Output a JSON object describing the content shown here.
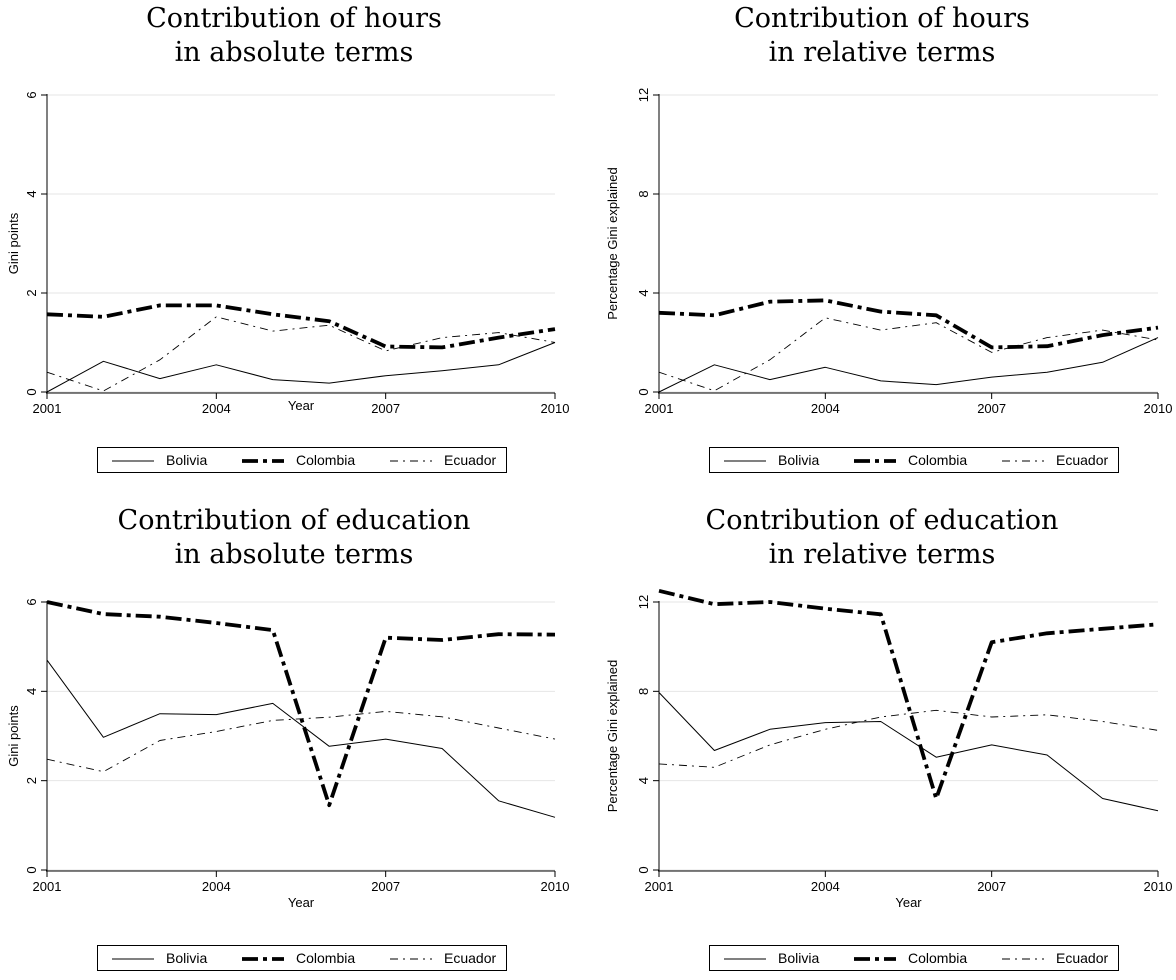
{
  "chart_data": [
    {
      "type": "line",
      "title": [
        "Contribution of hours",
        "in absolute terms"
      ],
      "xlabel": "Year",
      "ylabel": "Gini points",
      "x": [
        2001,
        2002,
        2003,
        2004,
        2005,
        2006,
        2007,
        2008,
        2009,
        2010
      ],
      "xticks": [
        "2001",
        "2004",
        "2007",
        "2010"
      ],
      "yticks": [
        "0",
        "2",
        "4",
        "6"
      ],
      "ylim": [
        0,
        6
      ],
      "grid": true,
      "legend": "bottom",
      "series": [
        {
          "name": "Bolivia",
          "values": [
            0.0,
            0.62,
            0.27,
            0.55,
            0.25,
            0.18,
            0.33,
            0.43,
            0.55,
            1.0
          ]
        },
        {
          "name": "Colombia",
          "values": [
            1.57,
            1.52,
            1.75,
            1.75,
            1.57,
            1.43,
            0.92,
            0.9,
            1.1,
            1.27
          ]
        },
        {
          "name": "Ecuador",
          "values": [
            0.4,
            0.02,
            0.65,
            1.52,
            1.23,
            1.35,
            0.83,
            1.1,
            1.2,
            1.0
          ]
        }
      ]
    },
    {
      "type": "line",
      "title": [
        "Contribution of hours",
        "in relative terms"
      ],
      "xlabel": "",
      "ylabel": "Percentage Gini explained",
      "x": [
        2001,
        2002,
        2003,
        2004,
        2005,
        2006,
        2007,
        2008,
        2009,
        2010
      ],
      "xticks": [
        "2001",
        "2004",
        "2007",
        "2010"
      ],
      "yticks": [
        "0",
        "4",
        "8",
        "12"
      ],
      "ylim": [
        0,
        12
      ],
      "grid": true,
      "legend": "bottom",
      "series": [
        {
          "name": "Bolivia",
          "values": [
            0.0,
            1.1,
            0.5,
            1.0,
            0.45,
            0.3,
            0.6,
            0.8,
            1.2,
            2.2
          ]
        },
        {
          "name": "Colombia",
          "values": [
            3.2,
            3.1,
            3.65,
            3.7,
            3.25,
            3.1,
            1.8,
            1.85,
            2.3,
            2.6
          ]
        },
        {
          "name": "Ecuador",
          "values": [
            0.8,
            0.05,
            1.3,
            3.0,
            2.5,
            2.8,
            1.6,
            2.2,
            2.5,
            2.1
          ]
        }
      ]
    },
    {
      "type": "line",
      "title": [
        "Contribution of education",
        "in absolute terms"
      ],
      "xlabel": "Year",
      "ylabel": "Gini points",
      "x": [
        2001,
        2002,
        2003,
        2004,
        2005,
        2006,
        2007,
        2008,
        2009,
        2010
      ],
      "xticks": [
        "2001",
        "2004",
        "2007",
        "2010"
      ],
      "yticks": [
        "0",
        "2",
        "4",
        "6"
      ],
      "ylim": [
        0,
        6
      ],
      "grid": true,
      "legend": "bottom",
      "series": [
        {
          "name": "Bolivia",
          "values": [
            4.7,
            2.97,
            3.5,
            3.48,
            3.73,
            2.77,
            2.93,
            2.72,
            1.55,
            1.18
          ]
        },
        {
          "name": "Colombia",
          "values": [
            6.0,
            5.73,
            5.67,
            5.53,
            5.37,
            1.45,
            5.2,
            5.15,
            5.28,
            5.27
          ]
        },
        {
          "name": "Ecuador",
          "values": [
            2.48,
            2.2,
            2.9,
            3.1,
            3.35,
            3.42,
            3.55,
            3.43,
            3.18,
            2.93
          ]
        }
      ]
    },
    {
      "type": "line",
      "title": [
        "Contribution of education",
        "in relative terms"
      ],
      "xlabel": "Year",
      "ylabel": "Percentage Gini explained",
      "x": [
        2001,
        2002,
        2003,
        2004,
        2005,
        2006,
        2007,
        2008,
        2009,
        2010
      ],
      "xticks": [
        "2001",
        "2004",
        "2007",
        "2010"
      ],
      "yticks": [
        "0",
        "4",
        "8",
        "12"
      ],
      "ylim": [
        0,
        12
      ],
      "grid": true,
      "legend": "bottom",
      "series": [
        {
          "name": "Bolivia",
          "values": [
            7.95,
            5.35,
            6.3,
            6.6,
            6.65,
            5.05,
            5.6,
            5.15,
            3.2,
            2.65
          ]
        },
        {
          "name": "Colombia",
          "values": [
            12.5,
            11.9,
            12.0,
            11.7,
            11.45,
            3.2,
            10.2,
            10.6,
            10.8,
            11.0
          ]
        },
        {
          "name": "Ecuador",
          "values": [
            4.75,
            4.6,
            5.6,
            6.3,
            6.85,
            7.15,
            6.85,
            6.95,
            6.65,
            6.25
          ]
        }
      ]
    }
  ],
  "legend": {
    "styles": [
      {
        "name": "Bolivia",
        "stroke": "#000000",
        "width": 1,
        "dash": ""
      },
      {
        "name": "Colombia",
        "stroke": "#000000",
        "width": 3.8,
        "dash": "16,5,4,5"
      },
      {
        "name": "Ecuador",
        "stroke": "#000000",
        "width": 0.9,
        "dash": "8,5,2,5"
      }
    ]
  },
  "colors": {
    "grid": "#e6e6e6",
    "axis": "#000000",
    "background": "#ffffff"
  }
}
